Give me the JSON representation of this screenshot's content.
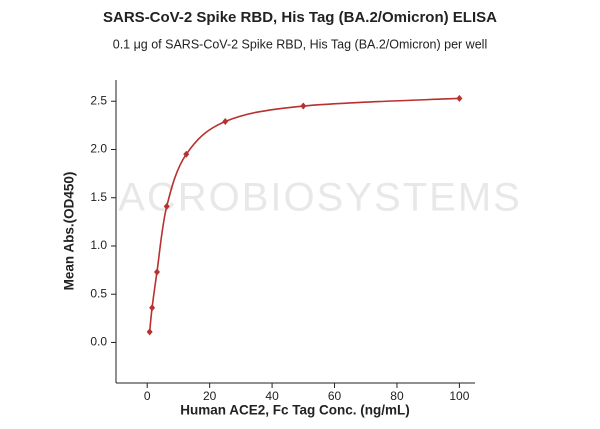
{
  "chart_data": {
    "type": "scatter",
    "title": "SARS-CoV-2 Spike RBD, His Tag (BA.2/Omicron) ELISA",
    "subtitle": "0.1 μg of SARS-CoV-2 Spike RBD, His Tag (BA.2/Omicron) per well",
    "xlabel": "Human ACE2, Fc Tag Conc. (ng/mL)",
    "ylabel": "Mean Abs.(OD450)",
    "watermark": "ACROBIOSYSTEMS",
    "x": [
      0.78,
      1.5625,
      3.125,
      6.25,
      12.5,
      25,
      50,
      100
    ],
    "values": [
      0.11,
      0.36,
      0.73,
      1.41,
      1.95,
      2.29,
      2.45,
      2.53
    ],
    "color": "#b8312f",
    "fit_curve": true,
    "xlim": [
      -10,
      105
    ],
    "xticks": [
      0,
      20,
      40,
      60,
      80,
      100
    ],
    "ylim": [
      -0.42,
      2.72
    ],
    "yticks": [
      {
        "value": 0,
        "label": "0.0"
      },
      0.5,
      {
        "value": 1,
        "label": "1.0"
      },
      1.5,
      {
        "value": 2,
        "label": "2.0"
      },
      2.5
    ]
  }
}
